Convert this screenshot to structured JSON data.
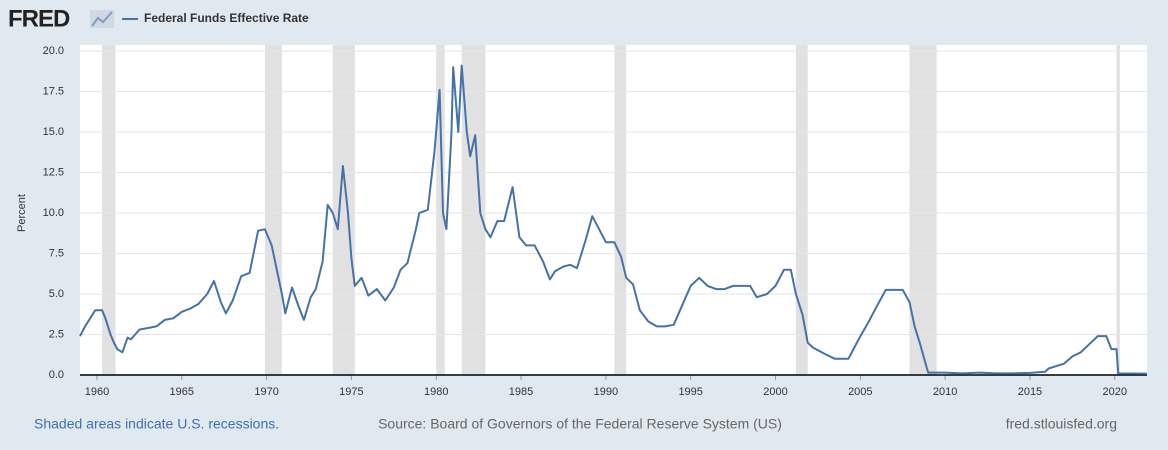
{
  "chart_data": {
    "type": "line",
    "logo": "FRED",
    "ylabel": "Percent",
    "note": "Shaded areas indicate U.S. recessions.",
    "source": "Source: Board of Governors of the Federal Reserve System (US)",
    "credit": "fred.stlouisfed.org",
    "xlim": [
      1959,
      2021.9
    ],
    "xticks": [
      1960,
      1965,
      1970,
      1975,
      1980,
      1985,
      1990,
      1995,
      2000,
      2005,
      2010,
      2015,
      2020
    ],
    "ylim": [
      0,
      20
    ],
    "yticks": [
      {
        "value": 0,
        "label": "0.0"
      },
      2.5,
      {
        "value": 5,
        "label": "5.0"
      },
      7.5,
      {
        "value": 10,
        "label": "10.0"
      },
      12.5,
      {
        "value": 15,
        "label": "15.0"
      },
      17.5,
      {
        "value": 20,
        "label": "20.0"
      }
    ],
    "grid": true,
    "recession_color": "#e1e1e1",
    "recessions": [
      [
        1960.3,
        1961.1
      ],
      [
        1969.9,
        1970.9
      ],
      [
        1973.9,
        1975.2
      ],
      [
        1980.0,
        1980.5
      ],
      [
        1981.5,
        1982.9
      ],
      [
        1990.5,
        1991.2
      ],
      [
        2001.2,
        2001.9
      ],
      [
        2007.9,
        2009.5
      ],
      [
        2020.1,
        2020.3
      ]
    ],
    "series": [
      {
        "name": "Federal Funds Effective Rate",
        "color": "#4572a7",
        "x": [
          1959.0,
          1959.3,
          1959.6,
          1959.9,
          1960.3,
          1960.5,
          1960.8,
          1961.0,
          1961.2,
          1961.5,
          1961.8,
          1962.0,
          1962.5,
          1963.0,
          1963.5,
          1964.0,
          1964.5,
          1965.0,
          1965.5,
          1966.0,
          1966.5,
          1966.9,
          1967.3,
          1967.6,
          1968.0,
          1968.5,
          1969.0,
          1969.5,
          1969.9,
          1970.3,
          1970.6,
          1970.9,
          1971.1,
          1971.5,
          1971.9,
          1972.2,
          1972.6,
          1972.9,
          1973.3,
          1973.6,
          1973.9,
          1974.2,
          1974.5,
          1974.8,
          1975.0,
          1975.2,
          1975.6,
          1976.0,
          1976.5,
          1977.0,
          1977.5,
          1977.9,
          1978.3,
          1978.8,
          1979.0,
          1979.5,
          1979.9,
          1980.2,
          1980.4,
          1980.6,
          1980.9,
          1981.0,
          1981.3,
          1981.5,
          1981.8,
          1982.0,
          1982.3,
          1982.6,
          1982.9,
          1983.2,
          1983.6,
          1984.0,
          1984.5,
          1984.9,
          1985.3,
          1985.8,
          1986.3,
          1986.7,
          1987.0,
          1987.5,
          1987.9,
          1988.3,
          1988.8,
          1989.2,
          1989.6,
          1990.0,
          1990.5,
          1990.9,
          1991.2,
          1991.6,
          1992.0,
          1992.5,
          1993.0,
          1993.5,
          1994.0,
          1994.5,
          1995.0,
          1995.5,
          1996.0,
          1996.5,
          1997.0,
          1997.5,
          1998.0,
          1998.5,
          1998.9,
          1999.5,
          2000.0,
          2000.5,
          2000.9,
          2001.2,
          2001.6,
          2001.9,
          2002.2,
          2002.9,
          2003.5,
          2004.3,
          2004.9,
          2005.5,
          2006.0,
          2006.5,
          2007.5,
          2007.9,
          2008.2,
          2008.5,
          2008.9,
          2009.0,
          2010.0,
          2011.0,
          2012.0,
          2013.0,
          2014.0,
          2015.0,
          2015.9,
          2016.1,
          2017.0,
          2017.5,
          2018.0,
          2018.5,
          2019.0,
          2019.5,
          2019.8,
          2020.1,
          2020.2,
          2021.0,
          2021.9
        ],
        "values": [
          2.4,
          3.0,
          3.5,
          4.0,
          4.0,
          3.5,
          2.5,
          2.0,
          1.6,
          1.4,
          2.3,
          2.2,
          2.8,
          2.9,
          3.0,
          3.4,
          3.5,
          3.9,
          4.1,
          4.4,
          5.0,
          5.8,
          4.5,
          3.8,
          4.6,
          6.1,
          6.3,
          8.9,
          9.0,
          8.0,
          6.5,
          5.0,
          3.8,
          5.4,
          4.2,
          3.4,
          4.8,
          5.3,
          7.0,
          10.5,
          10.0,
          9.0,
          12.9,
          10.0,
          7.2,
          5.5,
          6.0,
          4.9,
          5.3,
          4.6,
          5.4,
          6.5,
          6.9,
          9.0,
          10.0,
          10.2,
          13.8,
          17.6,
          10.0,
          9.0,
          15.0,
          19.0,
          15.0,
          19.1,
          15.0,
          13.5,
          14.8,
          10.0,
          9.0,
          8.5,
          9.5,
          9.5,
          11.6,
          8.5,
          8.0,
          8.0,
          7.0,
          5.9,
          6.4,
          6.7,
          6.8,
          6.6,
          8.3,
          9.8,
          9.0,
          8.2,
          8.2,
          7.3,
          6.0,
          5.6,
          4.0,
          3.3,
          3.0,
          3.0,
          3.1,
          4.3,
          5.5,
          6.0,
          5.5,
          5.3,
          5.3,
          5.5,
          5.5,
          5.5,
          4.8,
          5.0,
          5.5,
          6.5,
          6.5,
          5.0,
          3.7,
          2.0,
          1.7,
          1.3,
          1.0,
          1.0,
          2.2,
          3.3,
          4.3,
          5.25,
          5.25,
          4.5,
          3.0,
          2.0,
          0.5,
          0.15,
          0.15,
          0.1,
          0.15,
          0.1,
          0.1,
          0.13,
          0.2,
          0.4,
          0.7,
          1.15,
          1.4,
          1.9,
          2.4,
          2.4,
          1.6,
          1.6,
          0.1,
          0.09,
          0.08
        ]
      }
    ]
  }
}
